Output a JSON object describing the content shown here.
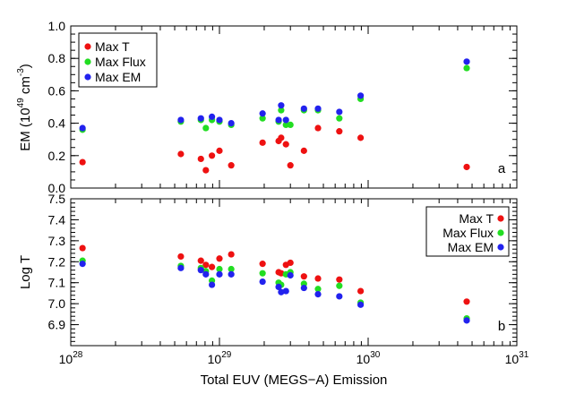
{
  "chart_data": [
    {
      "type": "scatter",
      "panel_letter": "a",
      "ylabel_main": "EM (10",
      "ylabel_exp": "49",
      "ylabel_unit": " cm",
      "ylabel_unit_exp": "-3",
      "ylabel_close": ")",
      "xscale": "log",
      "xlim": [
        1e+28,
        1e+31
      ],
      "ylim": [
        0.0,
        1.0
      ],
      "yticks": [
        0.0,
        0.2,
        0.4,
        0.6,
        0.8,
        1.0
      ],
      "ytick_labels": [
        "0.0",
        "0.2",
        "0.4",
        "0.6",
        "0.8",
        "1.0"
      ],
      "legend_position": "top-left",
      "series": [
        {
          "name": "Max T",
          "color": "#ee1111",
          "points": [
            [
              1.2e+28,
              0.16
            ],
            [
              5.5e+28,
              0.21
            ],
            [
              7.5e+28,
              0.18
            ],
            [
              8.1e+28,
              0.11
            ],
            [
              8.9e+28,
              0.2
            ],
            [
              1e+29,
              0.23
            ],
            [
              1.2e+29,
              0.14
            ],
            [
              1.95e+29,
              0.28
            ],
            [
              2.5e+29,
              0.29
            ],
            [
              2.6e+29,
              0.31
            ],
            [
              2.8e+29,
              0.27
            ],
            [
              3e+29,
              0.14
            ],
            [
              3.7e+29,
              0.23
            ],
            [
              4.6e+29,
              0.37
            ],
            [
              6.4e+29,
              0.35
            ],
            [
              8.9e+29,
              0.31
            ],
            [
              4.6e+30,
              0.13
            ]
          ]
        },
        {
          "name": "Max Flux",
          "color": "#22dd22",
          "points": [
            [
              1.2e+28,
              0.36
            ],
            [
              5.5e+28,
              0.41
            ],
            [
              7.5e+28,
              0.42
            ],
            [
              8.1e+28,
              0.37
            ],
            [
              8.9e+28,
              0.42
            ],
            [
              1e+29,
              0.41
            ],
            [
              1.2e+29,
              0.39
            ],
            [
              1.95e+29,
              0.43
            ],
            [
              2.5e+29,
              0.41
            ],
            [
              2.6e+29,
              0.48
            ],
            [
              2.8e+29,
              0.39
            ],
            [
              3e+29,
              0.39
            ],
            [
              3.7e+29,
              0.48
            ],
            [
              4.6e+29,
              0.48
            ],
            [
              6.4e+29,
              0.43
            ],
            [
              8.9e+29,
              0.55
            ],
            [
              4.6e+30,
              0.74
            ]
          ]
        },
        {
          "name": "Max EM",
          "color": "#2222ee",
          "points": [
            [
              1.2e+28,
              0.37
            ],
            [
              5.5e+28,
              0.42
            ],
            [
              7.5e+28,
              0.43
            ],
            [
              8.9e+28,
              0.44
            ],
            [
              1e+29,
              0.42
            ],
            [
              1.2e+29,
              0.4
            ],
            [
              1.95e+29,
              0.46
            ],
            [
              2.5e+29,
              0.42
            ],
            [
              2.6e+29,
              0.51
            ],
            [
              2.8e+29,
              0.42
            ],
            [
              3.7e+29,
              0.49
            ],
            [
              4.6e+29,
              0.49
            ],
            [
              6.4e+29,
              0.47
            ],
            [
              8.9e+29,
              0.57
            ],
            [
              4.6e+30,
              0.78
            ]
          ]
        }
      ]
    },
    {
      "type": "scatter",
      "panel_letter": "b",
      "xlabel": "Total EUV (MEGS−A) Emission",
      "ylabel": "Log T",
      "xscale": "log",
      "xlim": [
        1e+28,
        1e+31
      ],
      "xtick_base": "10",
      "xtick_exps": [
        "28",
        "29",
        "30",
        "31"
      ],
      "ylim": [
        6.8,
        7.5
      ],
      "yticks": [
        6.9,
        7.0,
        7.1,
        7.2,
        7.3,
        7.4,
        7.5
      ],
      "ytick_labels": [
        "6.9",
        "7.0",
        "7.1",
        "7.2",
        "7.3",
        "7.4",
        "7.5"
      ],
      "legend_position": "top-right",
      "series": [
        {
          "name": "Max T",
          "color": "#ee1111",
          "points": [
            [
              1.2e+28,
              7.265
            ],
            [
              5.5e+28,
              7.225
            ],
            [
              7.5e+28,
              7.205
            ],
            [
              8.1e+28,
              7.185
            ],
            [
              8.9e+28,
              7.175
            ],
            [
              1e+29,
              7.215
            ],
            [
              1.2e+29,
              7.235
            ],
            [
              1.95e+29,
              7.19
            ],
            [
              2.5e+29,
              7.15
            ],
            [
              2.6e+29,
              7.145
            ],
            [
              2.8e+29,
              7.185
            ],
            [
              3e+29,
              7.195
            ],
            [
              3.7e+29,
              7.13
            ],
            [
              4.6e+29,
              7.12
            ],
            [
              6.4e+29,
              7.115
            ],
            [
              8.9e+29,
              7.06
            ],
            [
              4.6e+30,
              7.01
            ]
          ]
        },
        {
          "name": "Max Flux",
          "color": "#22dd22",
          "points": [
            [
              1.2e+28,
              7.205
            ],
            [
              5.5e+28,
              7.18
            ],
            [
              7.5e+28,
              7.17
            ],
            [
              8.1e+28,
              7.155
            ],
            [
              8.9e+28,
              7.11
            ],
            [
              1e+29,
              7.165
            ],
            [
              1.2e+29,
              7.165
            ],
            [
              1.95e+29,
              7.145
            ],
            [
              2.5e+29,
              7.1
            ],
            [
              2.6e+29,
              7.09
            ],
            [
              2.8e+29,
              7.14
            ],
            [
              3e+29,
              7.15
            ],
            [
              3.7e+29,
              7.095
            ],
            [
              4.6e+29,
              7.07
            ],
            [
              6.4e+29,
              7.085
            ],
            [
              8.9e+29,
              7.005
            ],
            [
              4.6e+30,
              6.93
            ]
          ]
        },
        {
          "name": "Max EM",
          "color": "#2222ee",
          "points": [
            [
              1.2e+28,
              7.19
            ],
            [
              5.5e+28,
              7.17
            ],
            [
              7.5e+28,
              7.16
            ],
            [
              8.1e+28,
              7.14
            ],
            [
              8.9e+28,
              7.09
            ],
            [
              1e+29,
              7.14
            ],
            [
              1.2e+29,
              7.14
            ],
            [
              1.95e+29,
              7.105
            ],
            [
              2.5e+29,
              7.08
            ],
            [
              2.6e+29,
              7.055
            ],
            [
              2.8e+29,
              7.06
            ],
            [
              3e+29,
              7.135
            ],
            [
              3.7e+29,
              7.075
            ],
            [
              4.6e+29,
              7.045
            ],
            [
              6.4e+29,
              7.035
            ],
            [
              8.9e+29,
              6.995
            ],
            [
              4.6e+30,
              6.92
            ]
          ]
        }
      ]
    }
  ]
}
